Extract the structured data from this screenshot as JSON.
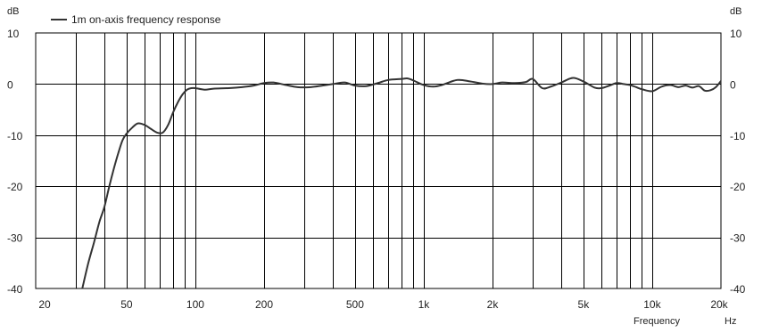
{
  "chart_data": {
    "type": "line",
    "title": "",
    "xlabel": "Frequency",
    "xunit": "Hz",
    "ylabel_left": "dB",
    "ylabel_right": "dB",
    "xscale": "log",
    "xlim": [
      20,
      20000
    ],
    "ylim": [
      -40,
      10
    ],
    "x_ticks": [
      {
        "value": 20,
        "label": "20"
      },
      {
        "value": 50,
        "label": "50"
      },
      {
        "value": 100,
        "label": "100"
      },
      {
        "value": 200,
        "label": "200"
      },
      {
        "value": 500,
        "label": "500"
      },
      {
        "value": 1000,
        "label": "1k"
      },
      {
        "value": 2000,
        "label": "2k"
      },
      {
        "value": 5000,
        "label": "5k"
      },
      {
        "value": 10000,
        "label": "10k"
      },
      {
        "value": 20000,
        "label": "20k"
      }
    ],
    "y_ticks": [
      10,
      0,
      -10,
      -20,
      -30,
      -40
    ],
    "grid": true,
    "legend_position": "top-left",
    "series": [
      {
        "name": "1m on-axis frequency response",
        "color": "#333333",
        "x": [
          32,
          34,
          36,
          38,
          40,
          42,
          44,
          46,
          48,
          50,
          53,
          56,
          60,
          64,
          68,
          72,
          76,
          80,
          84,
          88,
          92,
          96,
          100,
          110,
          120,
          140,
          160,
          180,
          200,
          220,
          250,
          280,
          320,
          360,
          400,
          450,
          500,
          560,
          630,
          700,
          800,
          850,
          900,
          1000,
          1100,
          1200,
          1400,
          1600,
          1800,
          2000,
          2200,
          2500,
          2800,
          3000,
          3300,
          3600,
          4000,
          4500,
          5000,
          5600,
          6000,
          6500,
          7000,
          7500,
          8000,
          8500,
          9000,
          10000,
          11000,
          12000,
          13000,
          14000,
          15000,
          16000,
          17000,
          18000,
          19000,
          20000
        ],
        "y": [
          -40,
          -35,
          -31,
          -27,
          -24,
          -20,
          -16.5,
          -13.5,
          -11,
          -9.7,
          -8.5,
          -7.7,
          -8,
          -8.8,
          -9.5,
          -9.5,
          -8,
          -5.5,
          -3.5,
          -2,
          -1.1,
          -0.8,
          -0.8,
          -1.1,
          -0.9,
          -0.8,
          -0.6,
          -0.3,
          0.2,
          0.3,
          -0.2,
          -0.6,
          -0.6,
          -0.3,
          0,
          0.3,
          -0.3,
          -0.4,
          0.2,
          0.8,
          1.0,
          1.1,
          0.7,
          -0.2,
          -0.5,
          -0.2,
          0.8,
          0.5,
          0.1,
          0,
          0.3,
          0.2,
          0.4,
          1.0,
          -0.8,
          -0.5,
          0.3,
          1.2,
          0.5,
          -0.7,
          -0.8,
          -0.3,
          0.2,
          0,
          -0.2,
          -0.6,
          -1.0,
          -1.4,
          -0.5,
          -0.2,
          -0.6,
          -0.3,
          -0.7,
          -0.4,
          -1.3,
          -1.2,
          -0.6,
          0.6
        ]
      }
    ]
  }
}
